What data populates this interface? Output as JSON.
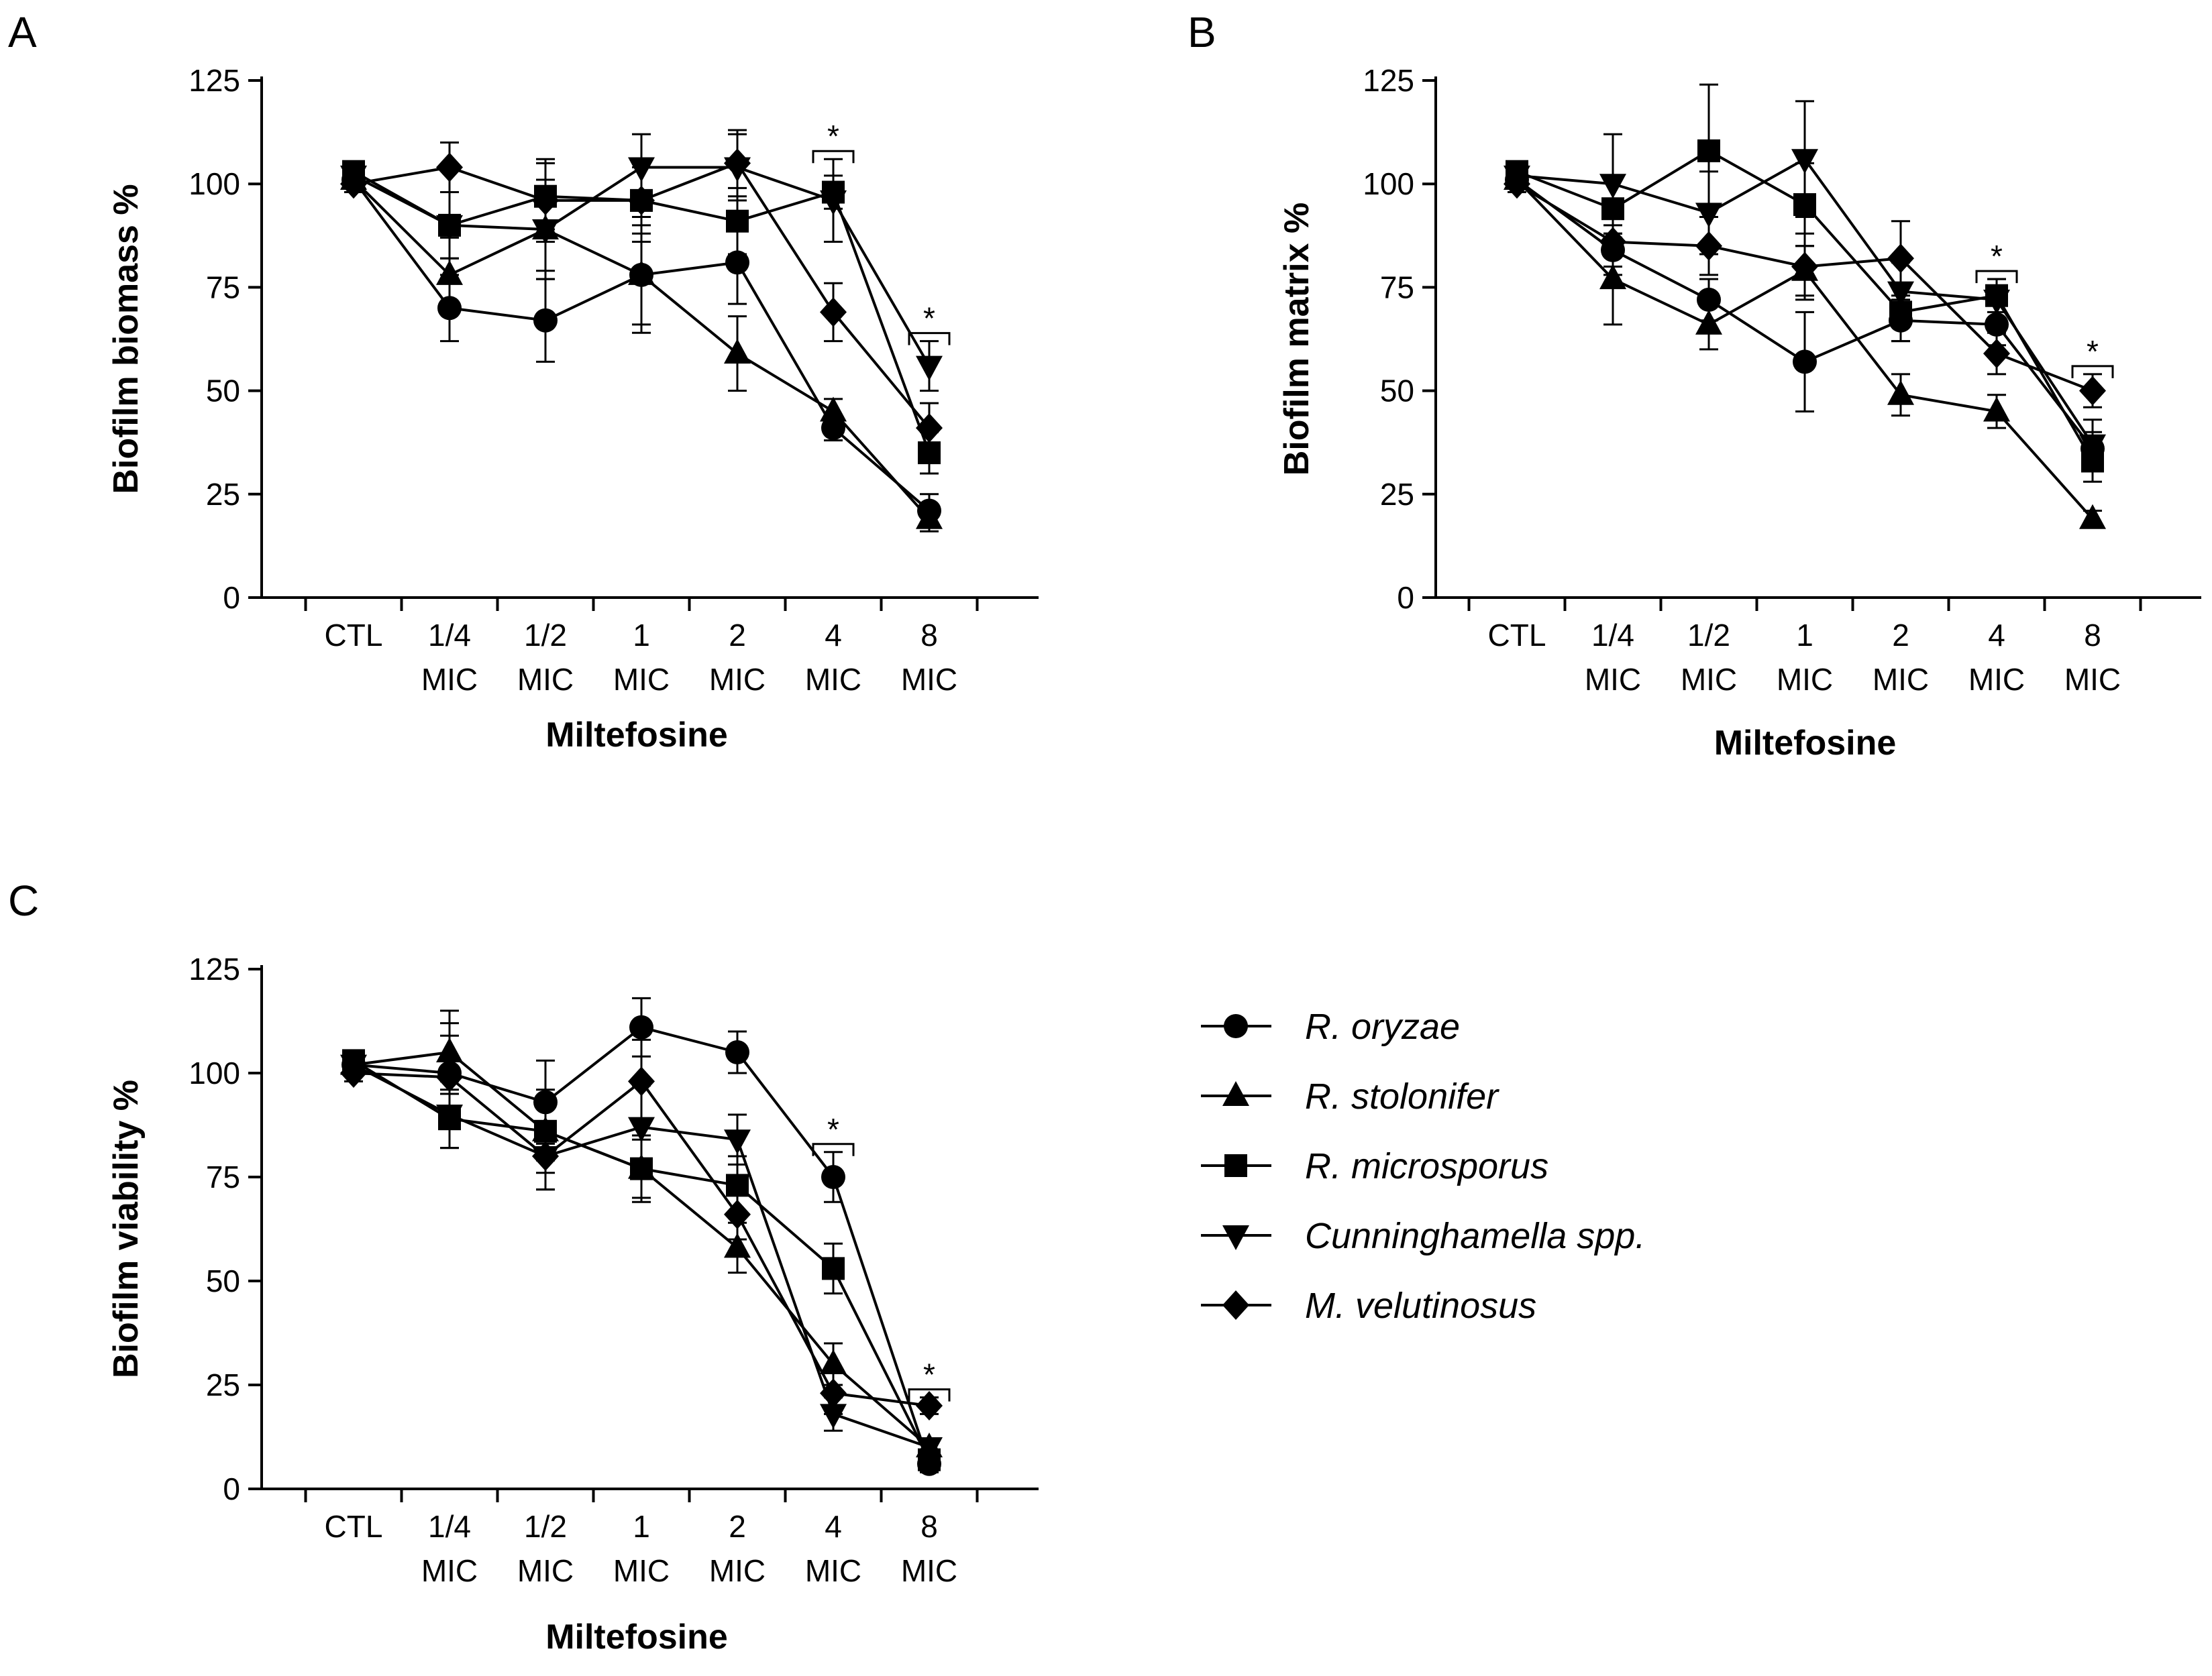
{
  "chart_data": [
    {
      "type": "line",
      "panel": "A",
      "xlabel": "Miltefosine",
      "ylabel": "Biofilm biomass %",
      "ylim": [
        0,
        125
      ],
      "yticks": [
        "0",
        "25",
        "50",
        "75",
        "100",
        "125"
      ],
      "categories": [
        [
          "CTL"
        ],
        [
          "1/4",
          "MIC"
        ],
        [
          "1/2",
          "MIC"
        ],
        [
          "1",
          "MIC"
        ],
        [
          "2",
          "MIC"
        ],
        [
          "4",
          "MIC"
        ],
        [
          "8",
          "MIC"
        ]
      ],
      "series": [
        {
          "name": "R. oryzae",
          "marker": "circle",
          "values": [
            101,
            70,
            67,
            78,
            81,
            41,
            21
          ],
          "errors": [
            2,
            8,
            10,
            14,
            10,
            3,
            4
          ]
        },
        {
          "name": "R. stolonifer",
          "marker": "triangle-up",
          "values": [
            101,
            78,
            89,
            78,
            59,
            45,
            19
          ],
          "errors": [
            2,
            9,
            10,
            12,
            9,
            3,
            3
          ]
        },
        {
          "name": "R. microsporus",
          "marker": "square",
          "values": [
            103,
            90,
            97,
            96,
            91,
            98,
            35
          ],
          "errors": [
            2,
            8,
            8,
            8,
            8,
            4,
            5
          ]
        },
        {
          "name": "Cunninghamella spp.",
          "marker": "triangle-down",
          "values": [
            102,
            90,
            89,
            104,
            104,
            96,
            56
          ],
          "errors": [
            2,
            8,
            12,
            8,
            8,
            10,
            6
          ]
        },
        {
          "name": "M. velutinosus",
          "marker": "diamond",
          "values": [
            100,
            104,
            96,
            96,
            105,
            69,
            41
          ],
          "errors": [
            2,
            6,
            10,
            10,
            8,
            7,
            6
          ]
        }
      ],
      "annotations": [
        {
          "label": "*",
          "category_index": 5
        },
        {
          "label": "*",
          "category_index": 6
        }
      ]
    },
    {
      "type": "line",
      "panel": "B",
      "xlabel": "Miltefosine",
      "ylabel": "Biofilm matrix %",
      "ylim": [
        0,
        125
      ],
      "yticks": [
        "0",
        "25",
        "50",
        "75",
        "100",
        "125"
      ],
      "categories": [
        [
          "CTL"
        ],
        [
          "1/4",
          "MIC"
        ],
        [
          "1/2",
          "MIC"
        ],
        [
          "1",
          "MIC"
        ],
        [
          "2",
          "MIC"
        ],
        [
          "4",
          "MIC"
        ],
        [
          "8",
          "MIC"
        ]
      ],
      "series": [
        {
          "name": "R. oryzae",
          "marker": "circle",
          "values": [
            101,
            84,
            72,
            57,
            67,
            66,
            36
          ],
          "errors": [
            2,
            6,
            5,
            12,
            5,
            5,
            4
          ]
        },
        {
          "name": "R. stolonifer",
          "marker": "triangle-up",
          "values": [
            101,
            77,
            66,
            79,
            49,
            45,
            19
          ],
          "errors": [
            2,
            11,
            6,
            6,
            5,
            4,
            2
          ]
        },
        {
          "name": "R. microsporus",
          "marker": "square",
          "values": [
            103,
            94,
            108,
            95,
            69,
            73,
            33
          ],
          "errors": [
            2,
            7,
            16,
            10,
            7,
            4,
            5
          ]
        },
        {
          "name": "Cunninghamella spp.",
          "marker": "triangle-down",
          "values": [
            102,
            100,
            93,
            106,
            74,
            72,
            37
          ],
          "errors": [
            2,
            12,
            10,
            14,
            7,
            5,
            6
          ]
        },
        {
          "name": "M. velutinosus",
          "marker": "diamond",
          "values": [
            100,
            86,
            85,
            80,
            82,
            59,
            50
          ],
          "errors": [
            2,
            6,
            7,
            8,
            9,
            5,
            4
          ]
        }
      ],
      "annotations": [
        {
          "label": "*",
          "category_index": 5
        },
        {
          "label": "*",
          "category_index": 6
        }
      ]
    },
    {
      "type": "line",
      "panel": "C",
      "xlabel": "Miltefosine",
      "ylabel": "Biofilm viability %",
      "ylim": [
        0,
        125
      ],
      "yticks": [
        "0",
        "25",
        "50",
        "75",
        "100",
        "125"
      ],
      "categories": [
        [
          "CTL"
        ],
        [
          "1/4",
          "MIC"
        ],
        [
          "1/2",
          "MIC"
        ],
        [
          "1",
          "MIC"
        ],
        [
          "2",
          "MIC"
        ],
        [
          "4",
          "MIC"
        ],
        [
          "8",
          "MIC"
        ]
      ],
      "series": [
        {
          "name": "R. oryzae",
          "marker": "circle",
          "values": [
            102,
            100,
            93,
            111,
            105,
            75,
            6
          ],
          "errors": [
            2,
            12,
            10,
            7,
            5,
            6,
            2
          ]
        },
        {
          "name": "R. stolonifer",
          "marker": "triangle-up",
          "values": [
            102,
            105,
            86,
            77,
            58,
            30,
            10
          ],
          "errors": [
            2,
            10,
            10,
            8,
            6,
            5,
            2
          ]
        },
        {
          "name": "R. microsporus",
          "marker": "square",
          "values": [
            103,
            89,
            86,
            77,
            73,
            53,
            7
          ],
          "errors": [
            2,
            7,
            7,
            7,
            7,
            6,
            2
          ]
        },
        {
          "name": "Cunninghamella spp.",
          "marker": "triangle-down",
          "values": [
            102,
            90,
            80,
            87,
            84,
            18,
            10
          ],
          "errors": [
            2,
            8,
            8,
            10,
            6,
            4,
            2
          ]
        },
        {
          "name": "M. velutinosus",
          "marker": "diamond",
          "values": [
            100,
            99,
            80,
            98,
            66,
            23,
            20
          ],
          "errors": [
            2,
            10,
            8,
            10,
            6,
            5,
            2
          ]
        }
      ],
      "annotations": [
        {
          "label": "*",
          "category_index": 5
        },
        {
          "label": "*",
          "category_index": 6
        }
      ]
    }
  ]
}
